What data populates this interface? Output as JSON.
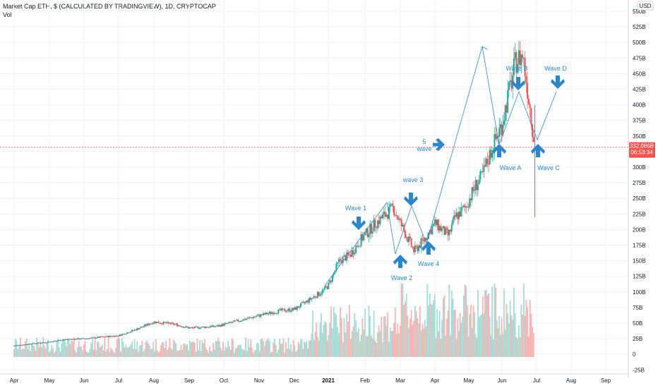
{
  "header": {
    "title": "Market Cap ETH, $ (CALCULATED BY TRADINGVIEW), 1D, CRYPTOCAP",
    "volume_label": "Vol",
    "currency_badge": "USD"
  },
  "price_badge": {
    "value": "332.086B",
    "countdown": "06:53:34"
  },
  "colors": {
    "up": "#26a69a",
    "down": "#ef5350",
    "vol_up": "#a5dcd6",
    "vol_down": "#f7b4b2",
    "annotation": "#2e86c8",
    "grid": "#eef0f3",
    "axis_text": "#131722"
  },
  "chart_data": {
    "type": "candlestick",
    "y_unit": "B",
    "price_ticks": [
      "550B",
      "525B",
      "500B",
      "475B",
      "450B",
      "425B",
      "400B",
      "375B",
      "350B",
      "325B",
      "300B",
      "275B",
      "250B",
      "225B",
      "200B",
      "175B",
      "150B",
      "125B",
      "100B",
      "75B",
      "50B",
      "25B",
      "0",
      "-25B"
    ],
    "x_ticks": [
      "Apr",
      "May",
      "Jun",
      "Jul",
      "Aug",
      "Sep",
      "Oct",
      "Nov",
      "Dec",
      "2021",
      "Feb",
      "Mar",
      "Apr",
      "May",
      "Jun",
      "Jul",
      "Aug",
      "Sep"
    ],
    "ylim": [
      -30,
      560
    ],
    "current_price": 332.086,
    "series": [
      {
        "name": "Market Cap ETH",
        "monthly_close_approx": {
          "2020-04": 22,
          "2020-05": 26,
          "2020-06": 27,
          "2020-07": 38,
          "2020-08": 50,
          "2020-09": 42,
          "2020-10": 44,
          "2020-11": 66,
          "2020-12": 85,
          "2021-01": 160,
          "2021-02": 165,
          "2021-03": 210,
          "2021-04": 320,
          "2021-05": 480,
          "2021-05-end": 332
        }
      }
    ],
    "annotations": [
      {
        "text": "Wave 1"
      },
      {
        "text": "Wave 2"
      },
      {
        "text": "wave 3"
      },
      {
        "text": "Wave 4"
      },
      {
        "text": "5\nwave"
      },
      {
        "text": "Wave A"
      },
      {
        "text": "Wave B"
      },
      {
        "text": "Wave C"
      },
      {
        "text": "Wave D"
      }
    ]
  }
}
